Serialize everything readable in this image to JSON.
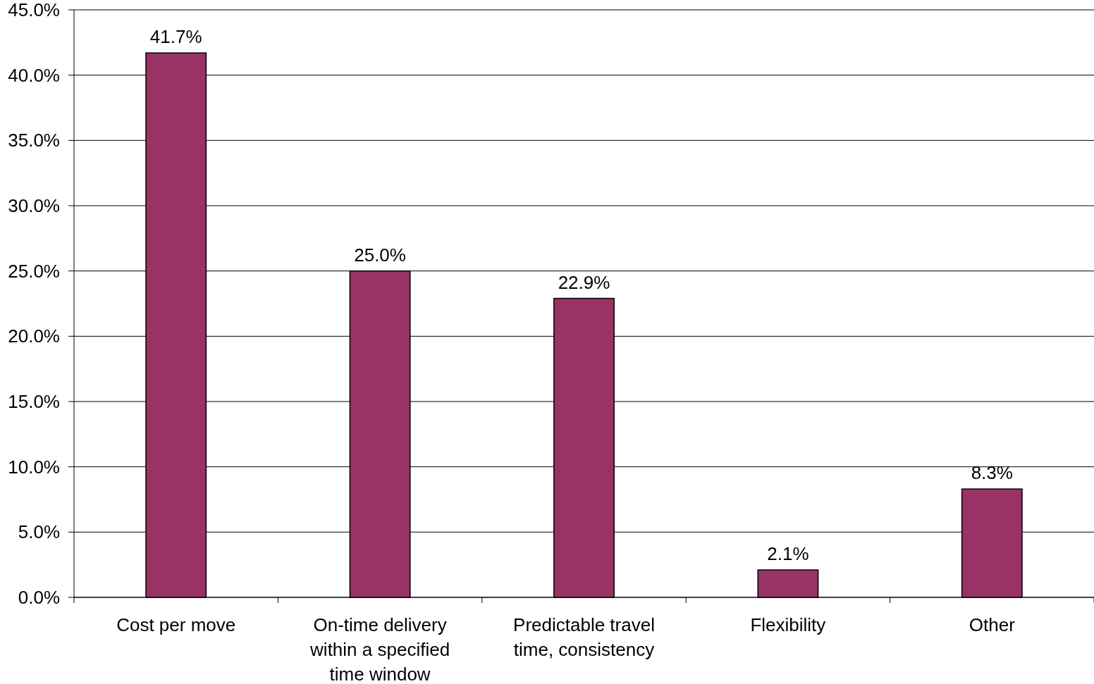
{
  "chart_data": {
    "type": "bar",
    "categories": [
      "Cost per move",
      "On-time delivery within a specified time window",
      "Predictable travel time, consistency",
      "Flexibility",
      "Other"
    ],
    "values": [
      41.7,
      25.0,
      22.9,
      2.1,
      8.3
    ],
    "value_labels": [
      "41.7%",
      "25.0%",
      "22.9%",
      "2.1%",
      "8.3%"
    ],
    "color": "#993366",
    "ylim": [
      0,
      45
    ],
    "yticks": [
      {
        "value": 0,
        "label": "0.0%"
      },
      {
        "value": 5,
        "label": "5.0%"
      },
      {
        "value": 10,
        "label": "10.0%"
      },
      {
        "value": 15,
        "label": "15.0%"
      },
      {
        "value": 20,
        "label": "20.0%"
      },
      {
        "value": 25,
        "label": "25.0%"
      },
      {
        "value": 30,
        "label": "30.0%"
      },
      {
        "value": 35,
        "label": "35.0%"
      },
      {
        "value": 40,
        "label": "40.0%"
      },
      {
        "value": 45,
        "label": "45.0%"
      }
    ],
    "grid": "y"
  }
}
